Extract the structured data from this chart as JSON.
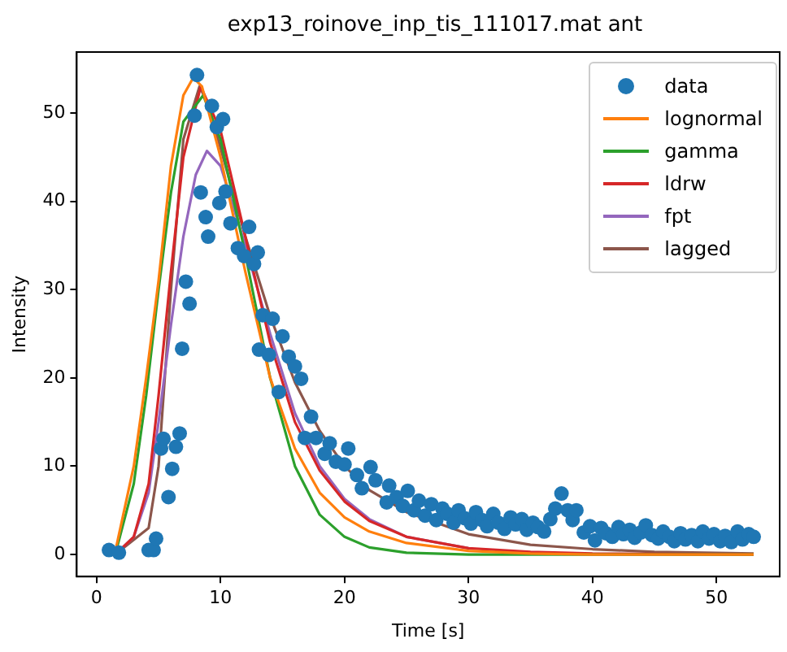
{
  "chart_data": {
    "type": "line",
    "title": "exp13_roinove_inp_tis_111017.mat ant",
    "xlabel": "Time [s]",
    "ylabel": "Intensity",
    "xlim": [
      -1.6,
      55.1
    ],
    "ylim": [
      -2.5,
      56.9
    ],
    "xticks": [
      0,
      10,
      20,
      30,
      40,
      50
    ],
    "yticks": [
      0,
      10,
      20,
      30,
      40,
      50
    ],
    "legend": "top right",
    "grid": false,
    "series": [
      {
        "name": "data",
        "type": "scatter",
        "marker": "circle",
        "color": "#1f77b4",
        "x": [
          1.0,
          1.8,
          4.2,
          4.6,
          4.8,
          5.2,
          5.4,
          5.8,
          6.1,
          6.4,
          6.7,
          6.9,
          7.2,
          7.5,
          7.9,
          8.1,
          8.4,
          8.8,
          9.0,
          9.3,
          9.7,
          9.9,
          10.2,
          10.4,
          10.8,
          11.4,
          11.9,
          12.3,
          12.7,
          13.0,
          13.1,
          13.4,
          13.9,
          14.2,
          14.7,
          15.0,
          15.5,
          16.0,
          16.5,
          16.8,
          17.3,
          17.7,
          18.4,
          18.8,
          19.3,
          20.0,
          20.3,
          21.0,
          21.4,
          22.1,
          22.5,
          23.4,
          23.6,
          24.2,
          24.7,
          25.1,
          25.6,
          26.0,
          26.5,
          27.0,
          27.4,
          27.9,
          28.3,
          28.8,
          29.2,
          29.7,
          30.2,
          30.6,
          31.1,
          31.5,
          32.0,
          32.4,
          32.9,
          33.4,
          33.8,
          34.3,
          34.7,
          35.2,
          35.6,
          36.1,
          36.6,
          37.0,
          37.5,
          38.0,
          38.4,
          38.7,
          39.3,
          39.8,
          40.2,
          40.7,
          41.1,
          41.6,
          42.1,
          42.5,
          43.0,
          43.4,
          43.9,
          44.3,
          44.8,
          45.3,
          45.7,
          46.2,
          46.6,
          47.1,
          47.5,
          48.0,
          48.5,
          48.9,
          49.4,
          49.8,
          50.3,
          50.7,
          51.2,
          51.7,
          52.1,
          52.6,
          53.0
        ],
        "values": [
          0.5,
          0.2,
          0.5,
          0.5,
          1.8,
          12.0,
          13.1,
          6.5,
          9.7,
          12.2,
          13.7,
          23.3,
          30.9,
          28.4,
          49.7,
          54.3,
          41.0,
          38.2,
          36.0,
          50.8,
          48.4,
          39.8,
          49.3,
          41.1,
          37.5,
          34.7,
          33.8,
          37.1,
          32.9,
          34.2,
          23.2,
          27.1,
          22.6,
          26.7,
          18.4,
          24.7,
          22.4,
          21.3,
          19.9,
          13.2,
          15.6,
          13.2,
          11.4,
          12.6,
          10.5,
          10.2,
          12.0,
          9.0,
          7.5,
          9.9,
          8.4,
          5.9,
          7.8,
          6.5,
          5.5,
          7.2,
          5.0,
          6.1,
          4.4,
          5.7,
          3.9,
          5.2,
          4.6,
          3.6,
          5.0,
          4.1,
          3.5,
          4.8,
          3.9,
          3.2,
          4.6,
          3.6,
          2.9,
          4.2,
          3.4,
          4.0,
          2.8,
          3.6,
          3.1,
          2.6,
          4.0,
          5.2,
          6.9,
          5.0,
          3.9,
          5.0,
          2.5,
          3.2,
          1.6,
          3.0,
          2.4,
          2.0,
          3.1,
          2.3,
          2.8,
          1.9,
          2.5,
          3.3,
          2.2,
          1.8,
          2.6,
          2.0,
          1.5,
          2.4,
          1.7,
          2.2,
          1.5,
          2.6,
          1.8,
          2.3,
          1.5,
          2.1,
          1.4,
          2.6,
          1.7,
          2.3,
          2.0
        ]
      },
      {
        "name": "lognormal",
        "color": "#ff7f0e",
        "x": [
          1.5,
          3,
          4,
          5,
          6,
          7,
          7.8,
          8.5,
          10,
          12,
          14,
          16,
          18,
          20,
          22,
          25,
          30,
          35,
          40,
          53
        ],
        "values": [
          0.3,
          10,
          20,
          31,
          44,
          52,
          54,
          53,
          45,
          32,
          20,
          12,
          7,
          4.2,
          2.6,
          1.3,
          0.4,
          0.1,
          0,
          0
        ]
      },
      {
        "name": "gamma",
        "color": "#2ca02c",
        "x": [
          1.5,
          3,
          4,
          5,
          6,
          7,
          8.6,
          10,
          12,
          14,
          16,
          18,
          20,
          22,
          25,
          30,
          53
        ],
        "values": [
          0,
          8,
          18,
          30,
          41,
          49,
          52,
          47,
          34,
          20,
          10,
          4.5,
          2,
          0.8,
          0.2,
          0,
          0
        ]
      },
      {
        "name": "ldrw",
        "color": "#d62728",
        "x": [
          1.5,
          3,
          4.2,
          5,
          6,
          7,
          8.4,
          10,
          12,
          14,
          16,
          18,
          20,
          22,
          25,
          30,
          35,
          40,
          53
        ],
        "values": [
          0,
          2,
          8,
          18,
          32,
          45,
          53,
          48,
          36,
          24,
          15,
          9.5,
          6,
          3.8,
          2,
          0.7,
          0.3,
          0.1,
          0
        ]
      },
      {
        "name": "fpt",
        "color": "#9467bd",
        "x": [
          1.5,
          3,
          4.2,
          5,
          6,
          7,
          8,
          8.9,
          10,
          12,
          14,
          16,
          18,
          20,
          22,
          25,
          30
        ],
        "values": [
          0,
          2,
          7,
          15,
          26,
          36,
          43,
          45.7,
          44,
          35,
          25,
          16,
          10,
          6.3,
          4,
          2,
          0.7
        ]
      },
      {
        "name": "lagged",
        "color": "#8c564b",
        "x": [
          1.5,
          4.2,
          5,
          6,
          7,
          8.3,
          9,
          10,
          12,
          14,
          16,
          18,
          20,
          22,
          25,
          30,
          35,
          40,
          45,
          53
        ],
        "values": [
          0,
          3,
          10,
          30,
          47,
          53,
          51,
          46,
          36,
          27,
          19.5,
          14,
          10,
          7.3,
          4.8,
          2.3,
          1.1,
          0.6,
          0.3,
          0.1
        ]
      }
    ]
  }
}
